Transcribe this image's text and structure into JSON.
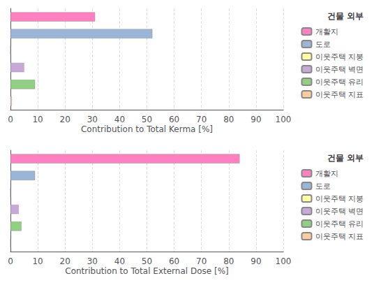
{
  "chart_data": [
    {
      "type": "bar",
      "orientation": "horizontal",
      "categories": [
        "개활지",
        "도로",
        "이웃주택 지붕",
        "이웃주택 벽면",
        "이웃주택 유리",
        "이웃주택 지표"
      ],
      "values": [
        31.0,
        52.0,
        0.0,
        5.0,
        9.0,
        0.5
      ],
      "colors": [
        "#FF80C0",
        "#9BB5D8",
        "#FFFFA0",
        "#C8A8D8",
        "#90D080",
        "#FFCCA0"
      ],
      "xlabel": "Contribution to Total Kerma [%]",
      "legend_title": "건물 외부",
      "xlim": [
        0,
        100
      ],
      "xticks": [
        0,
        10,
        20,
        30,
        40,
        50,
        60,
        70,
        80,
        90,
        100
      ],
      "grid": true,
      "legend": "upper right",
      "tick_labels": "x"
    },
    {
      "type": "bar",
      "orientation": "horizontal",
      "categories": [
        "개활지",
        "도로",
        "이웃주택 지붕",
        "이웃주택 벽면",
        "이웃주택 유리",
        "이웃주택 지표"
      ],
      "values": [
        84.0,
        9.0,
        0.0,
        3.0,
        4.0,
        0.0
      ],
      "colors": [
        "#FF80C0",
        "#9BB5D8",
        "#FFFFA0",
        "#C8A8D8",
        "#90D080",
        "#FFCCA0"
      ],
      "xlabel": "Contribution to Total External Dose [%]",
      "legend_title": "건물 외부",
      "xlim": [
        0,
        100
      ],
      "xticks": [
        0,
        10,
        20,
        30,
        40,
        50,
        60,
        70,
        80,
        90,
        100
      ],
      "grid": true,
      "legend": "upper right",
      "tick_labels": "x"
    }
  ]
}
